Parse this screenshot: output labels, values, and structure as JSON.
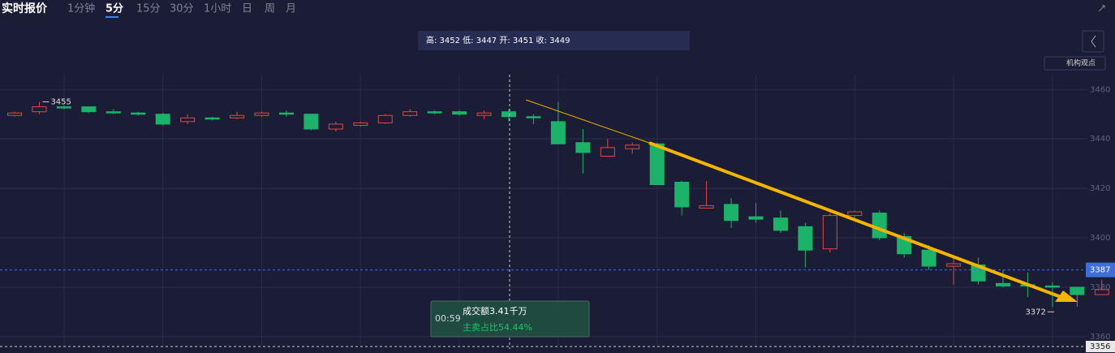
{
  "header": {
    "title": "实时报价",
    "tabs": [
      "1分钟",
      "5分",
      "15分",
      "30分",
      "1小时",
      "日",
      "周",
      "月"
    ],
    "active_tab": 1
  },
  "info_box": "高: 3452 低: 3447 开: 3451 收: 3449",
  "button": "机构观点",
  "tooltip": {
    "time": "00:59",
    "amount": "成交额3.41千万",
    "ratio": "主卖占比54.44%"
  },
  "chart_data": {
    "type": "candlestick",
    "open": [
      3449.5,
      3451,
      3453,
      3453,
      3451,
      3450.5,
      3450,
      3447,
      3448.5,
      3448.5,
      3449.5,
      3450.5,
      3450,
      3444,
      3445.5,
      3446.5,
      3449.5,
      3451,
      3451,
      3449.5,
      3451,
      3449,
      3447,
      3438.5,
      3433,
      3436,
      3438,
      3422.5,
      3412,
      3413.5,
      3408.5,
      3408,
      3404.5,
      3395.5,
      3409,
      3410,
      3400.5,
      3395,
      3388.5,
      3389,
      3381.5,
      3381,
      3380.5,
      3380,
      3377
    ],
    "high": [
      3451,
      3455,
      3453.5,
      3453,
      3452,
      3451,
      3450.5,
      3450,
      3449,
      3451,
      3451,
      3451.5,
      3450,
      3447,
      3447,
      3450,
      3452,
      3451.5,
      3451.5,
      3451.5,
      3452,
      3450,
      3455,
      3444,
      3440,
      3438.5,
      3438.5,
      3423,
      3423,
      3416,
      3414,
      3411,
      3406,
      3410,
      3411,
      3411,
      3402,
      3397,
      3393,
      3392,
      3387,
      3386,
      3382,
      3380,
      3383
    ],
    "low": [
      3449,
      3450,
      3452,
      3450.5,
      3450,
      3449.5,
      3445.5,
      3446,
      3447.5,
      3448,
      3449,
      3449,
      3443.5,
      3443,
      3445,
      3446,
      3449,
      3450,
      3449.5,
      3448,
      3447,
      3446,
      3438,
      3426,
      3433,
      3434,
      3421.5,
      3409,
      3412,
      3404,
      3406,
      3402,
      3388,
      3394,
      3408,
      3399,
      3392,
      3387,
      3381,
      3381,
      3380,
      3376,
      3372,
      3372,
      3377
    ],
    "close": [
      3450.5,
      3453,
      3452.5,
      3451,
      3450.5,
      3450,
      3446,
      3448.5,
      3448,
      3449.5,
      3450.5,
      3450,
      3444,
      3446,
      3446.5,
      3449.5,
      3451,
      3450.5,
      3450,
      3450.5,
      3449,
      3448.5,
      3438,
      3434.5,
      3436.5,
      3437.5,
      3421.5,
      3412.5,
      3413,
      3407,
      3407.5,
      3403,
      3395,
      3409,
      3410.5,
      3400,
      3393.5,
      3388.5,
      3389.5,
      3382.5,
      3380.5,
      3380.5,
      3380,
      3377,
      3379
    ],
    "up_color": "#e04848",
    "down_color": "#1db26a",
    "ylim": [
      3356,
      3466
    ],
    "yticks": [
      3360,
      3380,
      3400,
      3420,
      3440,
      3460
    ],
    "grid": true,
    "current_price": 3387,
    "bottom_price": 3356,
    "max_marker": 3455,
    "min_marker": 3372
  }
}
